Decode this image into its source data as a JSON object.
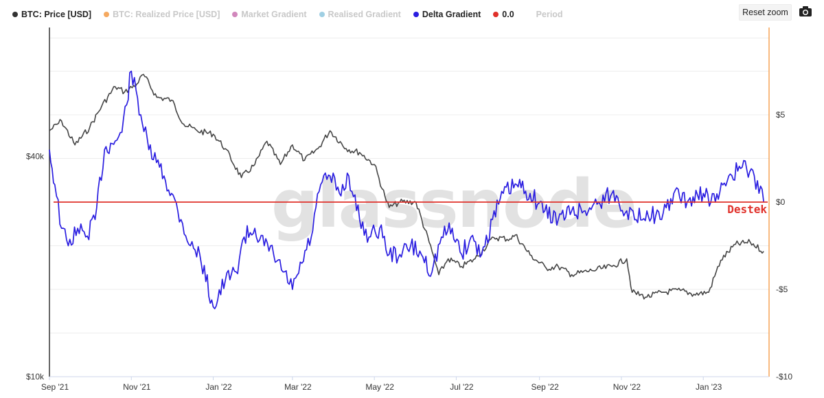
{
  "legend": [
    {
      "label": "BTC: Price [USD]",
      "color": "#333333",
      "active": true
    },
    {
      "label": "BTC: Realized Price [USD]",
      "color": "#f28c2b",
      "active": false
    },
    {
      "label": "Market Gradient",
      "color": "#c25fa5",
      "active": false
    },
    {
      "label": "Realised Gradient",
      "color": "#7fbfd9",
      "active": false
    },
    {
      "label": "Delta Gradient",
      "color": "#2a1de0",
      "active": true
    },
    {
      "label": "0.0",
      "color": "#e0302a",
      "active": true
    },
    {
      "label": "Period",
      "color": "",
      "active": false
    }
  ],
  "toolbar": {
    "reset_label": "Reset zoom",
    "camera_icon": "camera-icon"
  },
  "watermark": "glassnode",
  "annotation": "Destek",
  "chart_data": {
    "type": "line",
    "x_ticks": [
      "Sep '21",
      "Nov '21",
      "Jan '22",
      "Mar '22",
      "May '22",
      "Jul '22",
      "Sep '22",
      "Nov '22",
      "Jan '23"
    ],
    "left_axis": {
      "scale": "log",
      "ticks": [
        "$40k",
        "$10k"
      ],
      "tick_values": [
        40000,
        10000
      ],
      "range": [
        10000,
        90000
      ]
    },
    "right_axis": {
      "ticks": [
        "$5",
        "$0",
        "-$5",
        "-$10"
      ],
      "tick_values": [
        5,
        0,
        -5,
        -10
      ],
      "range": [
        -10,
        10
      ]
    },
    "reference_line": {
      "label": "0.0",
      "value": 0,
      "color": "#e0302a"
    },
    "grid": true,
    "series": [
      {
        "name": "BTC: Price [USD]",
        "axis": "left",
        "color": "#444444",
        "x": [
          "2021-09-01",
          "2021-09-10",
          "2021-09-20",
          "2021-10-01",
          "2021-10-10",
          "2021-10-20",
          "2021-10-27",
          "2021-11-05",
          "2021-11-10",
          "2021-11-20",
          "2021-12-01",
          "2021-12-10",
          "2021-12-20",
          "2022-01-01",
          "2022-01-10",
          "2022-01-22",
          "2022-02-01",
          "2022-02-10",
          "2022-02-20",
          "2022-03-01",
          "2022-03-10",
          "2022-03-20",
          "2022-03-29",
          "2022-04-10",
          "2022-04-20",
          "2022-05-01",
          "2022-05-09",
          "2022-05-12",
          "2022-05-20",
          "2022-06-01",
          "2022-06-13",
          "2022-06-18",
          "2022-06-25",
          "2022-07-05",
          "2022-07-15",
          "2022-07-29",
          "2022-08-10",
          "2022-08-14",
          "2022-08-25",
          "2022-09-06",
          "2022-09-15",
          "2022-09-25",
          "2022-10-10",
          "2022-10-25",
          "2022-11-05",
          "2022-11-09",
          "2022-11-20",
          "2022-12-01",
          "2022-12-15",
          "2022-12-25",
          "2023-01-05",
          "2023-01-14",
          "2023-01-25",
          "2023-02-05",
          "2023-02-15"
        ],
        "values": [
          47000,
          50000,
          43000,
          48000,
          55000,
          62000,
          60000,
          63000,
          67000,
          58000,
          57000,
          49000,
          47000,
          46000,
          42000,
          35000,
          38000,
          44000,
          38000,
          43000,
          39000,
          42000,
          47000,
          42000,
          41000,
          38000,
          31000,
          29000,
          30000,
          30000,
          22000,
          19000,
          21000,
          20000,
          21000,
          24000,
          23800,
          24400,
          21500,
          19800,
          20000,
          19000,
          19500,
          20000,
          21000,
          17000,
          16500,
          17000,
          17200,
          16800,
          17000,
          20800,
          23000,
          23300,
          22000
        ]
      },
      {
        "name": "Delta Gradient",
        "axis": "right",
        "color": "#2a1de0",
        "x": [
          "2021-09-01",
          "2021-09-05",
          "2021-09-10",
          "2021-09-15",
          "2021-09-22",
          "2021-09-28",
          "2021-10-05",
          "2021-10-12",
          "2021-10-20",
          "2021-10-25",
          "2021-11-01",
          "2021-11-08",
          "2021-11-14",
          "2021-11-22",
          "2021-12-01",
          "2021-12-08",
          "2021-12-15",
          "2021-12-22",
          "2022-01-01",
          "2022-01-10",
          "2022-01-18",
          "2022-01-24",
          "2022-02-01",
          "2022-02-08",
          "2022-02-15",
          "2022-02-22",
          "2022-03-01",
          "2022-03-08",
          "2022-03-15",
          "2022-03-22",
          "2022-03-29",
          "2022-04-05",
          "2022-04-12",
          "2022-04-20",
          "2022-04-27",
          "2022-05-05",
          "2022-05-12",
          "2022-05-20",
          "2022-05-28",
          "2022-06-05",
          "2022-06-13",
          "2022-06-20",
          "2022-06-28",
          "2022-07-05",
          "2022-07-12",
          "2022-07-20",
          "2022-07-28",
          "2022-08-05",
          "2022-08-15",
          "2022-08-25",
          "2022-09-05",
          "2022-09-15",
          "2022-09-25",
          "2022-10-05",
          "2022-10-15",
          "2022-10-25",
          "2022-11-05",
          "2022-11-12",
          "2022-11-20",
          "2022-12-01",
          "2022-12-10",
          "2022-12-20",
          "2023-01-01",
          "2023-01-10",
          "2023-01-20",
          "2023-01-30",
          "2023-02-08",
          "2023-02-15"
        ],
        "values": [
          3,
          1,
          -1.5,
          -2.5,
          -1.5,
          -2,
          -1,
          3,
          3.5,
          4,
          7.5,
          5,
          3,
          2,
          0.5,
          -1,
          -2.5,
          -3,
          -6,
          -4.5,
          -4,
          -2,
          -1.5,
          -2.5,
          -3,
          -4,
          -5,
          -3.5,
          -2,
          1,
          1.5,
          0.5,
          1.5,
          -1,
          -2,
          -1.5,
          -3,
          -3,
          -2.5,
          -3,
          -4,
          -2,
          -1.5,
          -3,
          -2,
          -3,
          -1,
          0.5,
          1,
          0.5,
          -0.5,
          -1,
          -0.5,
          -0.5,
          0,
          0.5,
          -0.5,
          -1,
          -0.5,
          -1,
          0.5,
          0,
          0.5,
          0,
          1.5,
          2,
          1.5,
          0
        ]
      }
    ]
  }
}
